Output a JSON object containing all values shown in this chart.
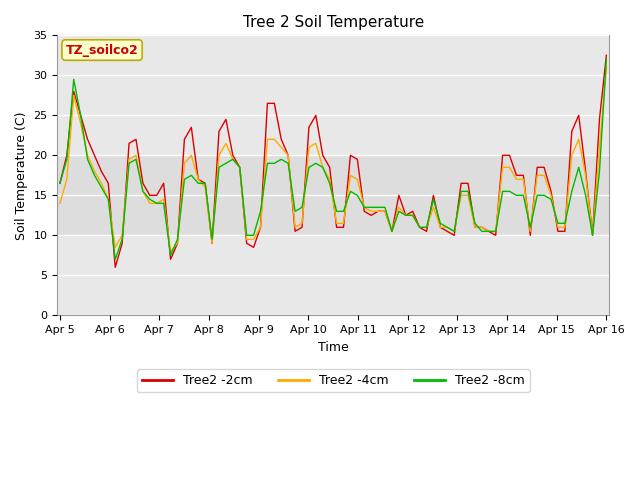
{
  "title": "Tree 2 Soil Temperature",
  "xlabel": "Time",
  "ylabel": "Soil Temperature (C)",
  "annotation": "TZ_soilco2",
  "annotation_color": "#cc0000",
  "annotation_bg": "#ffffcc",
  "annotation_border": "#bbaa00",
  "ylim": [
    0,
    35
  ],
  "yticks": [
    0,
    5,
    10,
    15,
    20,
    25,
    30,
    35
  ],
  "xtick_labels": [
    "Apr 5",
    "Apr 6",
    "Apr 7",
    "Apr 8",
    "Apr 9",
    "Apr 10",
    "Apr 11",
    "Apr 12",
    "Apr 13",
    "Apr 14",
    "Apr 15",
    "Apr 16"
  ],
  "xtick_positions": [
    0,
    1,
    2,
    3,
    4,
    5,
    6,
    7,
    8,
    9,
    10,
    11
  ],
  "grid_color": "#ffffff",
  "outer_bg": "#ffffff",
  "plot_bg": "#e8e8e8",
  "legend_labels": [
    "Tree2 -2cm",
    "Tree2 -4cm",
    "Tree2 -8cm"
  ],
  "line_colors": [
    "#dd0000",
    "#ffaa00",
    "#00bb00"
  ],
  "shaded_bands": [
    {
      "ymin": 10,
      "ymax": 20,
      "color": "#dddddd"
    },
    {
      "ymin": 20,
      "ymax": 30,
      "color": "#e8e8e8"
    }
  ],
  "series_2cm": [
    16.5,
    20.0,
    28.0,
    25.0,
    22.0,
    20.0,
    18.0,
    16.5,
    6.0,
    9.0,
    21.5,
    22.0,
    16.5,
    15.0,
    15.0,
    16.5,
    7.0,
    9.0,
    22.0,
    23.5,
    17.0,
    16.5,
    9.0,
    23.0,
    24.5,
    20.0,
    18.5,
    9.0,
    8.5,
    11.0,
    26.5,
    26.5,
    22.0,
    20.0,
    10.5,
    11.0,
    23.5,
    25.0,
    20.0,
    18.5,
    11.0,
    11.0,
    20.0,
    19.5,
    13.0,
    12.5,
    13.0,
    13.0,
    10.5,
    15.0,
    12.5,
    13.0,
    11.0,
    10.5,
    15.0,
    11.0,
    10.5,
    10.0,
    16.5,
    16.5,
    11.0,
    11.0,
    10.5,
    10.0,
    20.0,
    20.0,
    17.5,
    17.5,
    10.0,
    18.5,
    18.5,
    15.5,
    10.5,
    10.5,
    23.0,
    25.0,
    18.0,
    10.0,
    24.5,
    32.5
  ],
  "series_4cm": [
    14.0,
    17.0,
    27.5,
    24.0,
    20.0,
    18.0,
    16.5,
    14.5,
    8.5,
    10.0,
    19.5,
    20.0,
    15.5,
    14.0,
    14.0,
    14.5,
    8.0,
    9.0,
    19.0,
    20.0,
    17.0,
    16.0,
    9.0,
    20.0,
    21.5,
    19.5,
    18.5,
    9.5,
    9.5,
    11.0,
    22.0,
    22.0,
    21.0,
    20.0,
    11.0,
    11.5,
    21.0,
    21.5,
    18.5,
    17.0,
    11.5,
    11.5,
    17.5,
    17.0,
    13.5,
    13.0,
    13.0,
    13.0,
    10.5,
    13.5,
    12.5,
    12.5,
    11.0,
    11.0,
    13.5,
    11.0,
    11.0,
    10.5,
    15.0,
    15.0,
    11.0,
    11.0,
    10.5,
    10.5,
    18.5,
    18.5,
    17.0,
    17.0,
    10.5,
    17.5,
    17.5,
    15.0,
    11.0,
    11.0,
    20.0,
    22.0,
    17.5,
    10.0,
    21.0,
    31.0
  ],
  "series_8cm": [
    16.5,
    19.5,
    29.5,
    25.0,
    19.5,
    17.5,
    16.0,
    14.5,
    7.0,
    9.5,
    19.0,
    19.5,
    15.5,
    14.5,
    14.0,
    14.0,
    7.5,
    9.5,
    17.0,
    17.5,
    16.5,
    16.5,
    9.5,
    18.5,
    19.0,
    19.5,
    18.5,
    10.0,
    10.0,
    13.0,
    19.0,
    19.0,
    19.5,
    19.0,
    13.0,
    13.5,
    18.5,
    19.0,
    18.5,
    16.5,
    13.0,
    13.0,
    15.5,
    15.0,
    13.5,
    13.5,
    13.5,
    13.5,
    10.5,
    13.0,
    12.5,
    12.5,
    11.0,
    11.0,
    14.5,
    11.5,
    11.0,
    10.5,
    15.5,
    15.5,
    11.5,
    10.5,
    10.5,
    10.5,
    15.5,
    15.5,
    15.0,
    15.0,
    11.0,
    15.0,
    15.0,
    14.5,
    11.5,
    11.5,
    15.5,
    18.5,
    15.0,
    10.0,
    18.0,
    32.0
  ]
}
